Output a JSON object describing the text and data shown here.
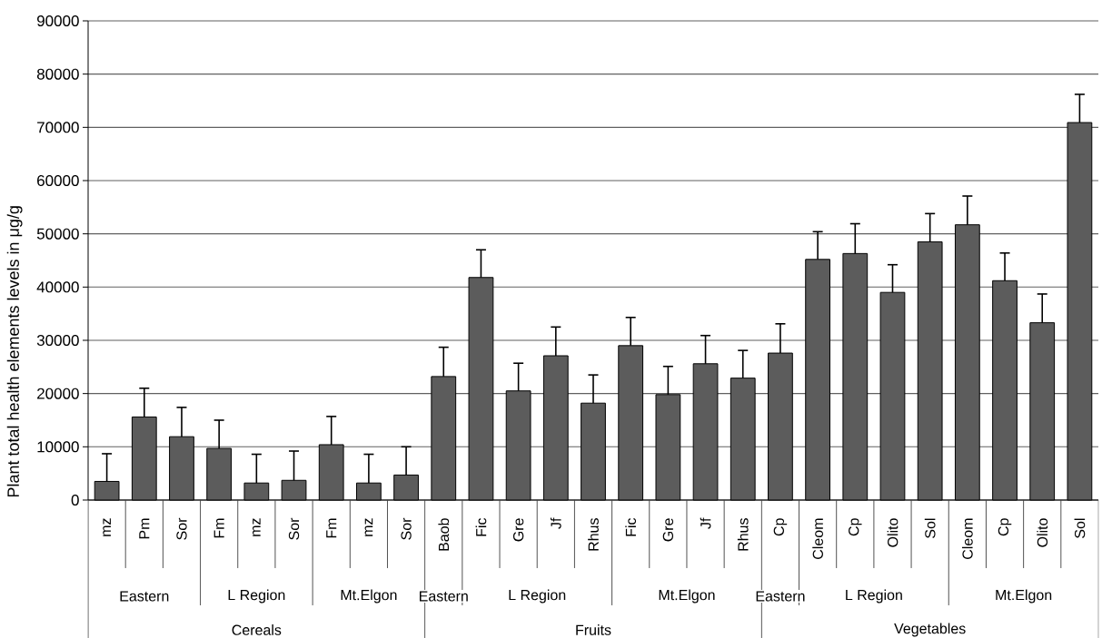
{
  "chart_data": {
    "type": "bar",
    "ylabel": "Plant total health elements levels in μg/g",
    "categories": [
      "mz",
      "Pm",
      "Sor",
      "Fm",
      "mz",
      "Sor",
      "Fm",
      "mz",
      "Sor",
      "Baob",
      "Fic",
      "Gre",
      "Jf",
      "Rhus",
      "Fic",
      "Gre",
      "Jf",
      "Rhus",
      "Cp",
      "Cleom",
      "Cp",
      "Olito",
      "Sol",
      "Cleom",
      "Cp",
      "Olito",
      "Sol"
    ],
    "values": [
      3500,
      15600,
      11900,
      9700,
      3200,
      3700,
      10400,
      3200,
      4700,
      23200,
      41800,
      20500,
      27100,
      18200,
      29000,
      19800,
      25600,
      22900,
      27600,
      45200,
      46300,
      39000,
      48500,
      51700,
      41200,
      33300,
      70900
    ],
    "errors": [
      [
        3500,
        8700
      ],
      [
        15600,
        21000
      ],
      [
        11900,
        17400
      ],
      [
        9700,
        15000
      ],
      [
        3200,
        8600
      ],
      [
        3700,
        9200
      ],
      [
        10400,
        15700
      ],
      [
        3200,
        8600
      ],
      [
        4700,
        10000
      ],
      [
        23200,
        28700
      ],
      [
        41800,
        47000
      ],
      [
        20500,
        25700
      ],
      [
        27100,
        32500
      ],
      [
        18200,
        23500
      ],
      [
        29000,
        34300
      ],
      [
        19800,
        25100
      ],
      [
        25600,
        30900
      ],
      [
        22900,
        28100
      ],
      [
        27600,
        33100
      ],
      [
        45200,
        50400
      ],
      [
        46300,
        51900
      ],
      [
        39000,
        44200
      ],
      [
        48500,
        53800
      ],
      [
        51700,
        57100
      ],
      [
        41200,
        46400
      ],
      [
        33300,
        38700
      ],
      [
        70900,
        76200
      ]
    ],
    "color": "#5c5c5c",
    "ylim": [
      0,
      90000
    ],
    "yticks": [
      0,
      10000,
      20000,
      30000,
      40000,
      50000,
      60000,
      70000,
      80000,
      90000
    ],
    "grid": "y",
    "annotations": [
      "Eastern",
      "L Region",
      "Mt.Elgon",
      "Eastern",
      "L Region",
      "Mt.Elgon",
      "Eastern",
      "L Region",
      "Mt.Elgon",
      "Cereals",
      "Fruits",
      "Vegetables"
    ]
  }
}
